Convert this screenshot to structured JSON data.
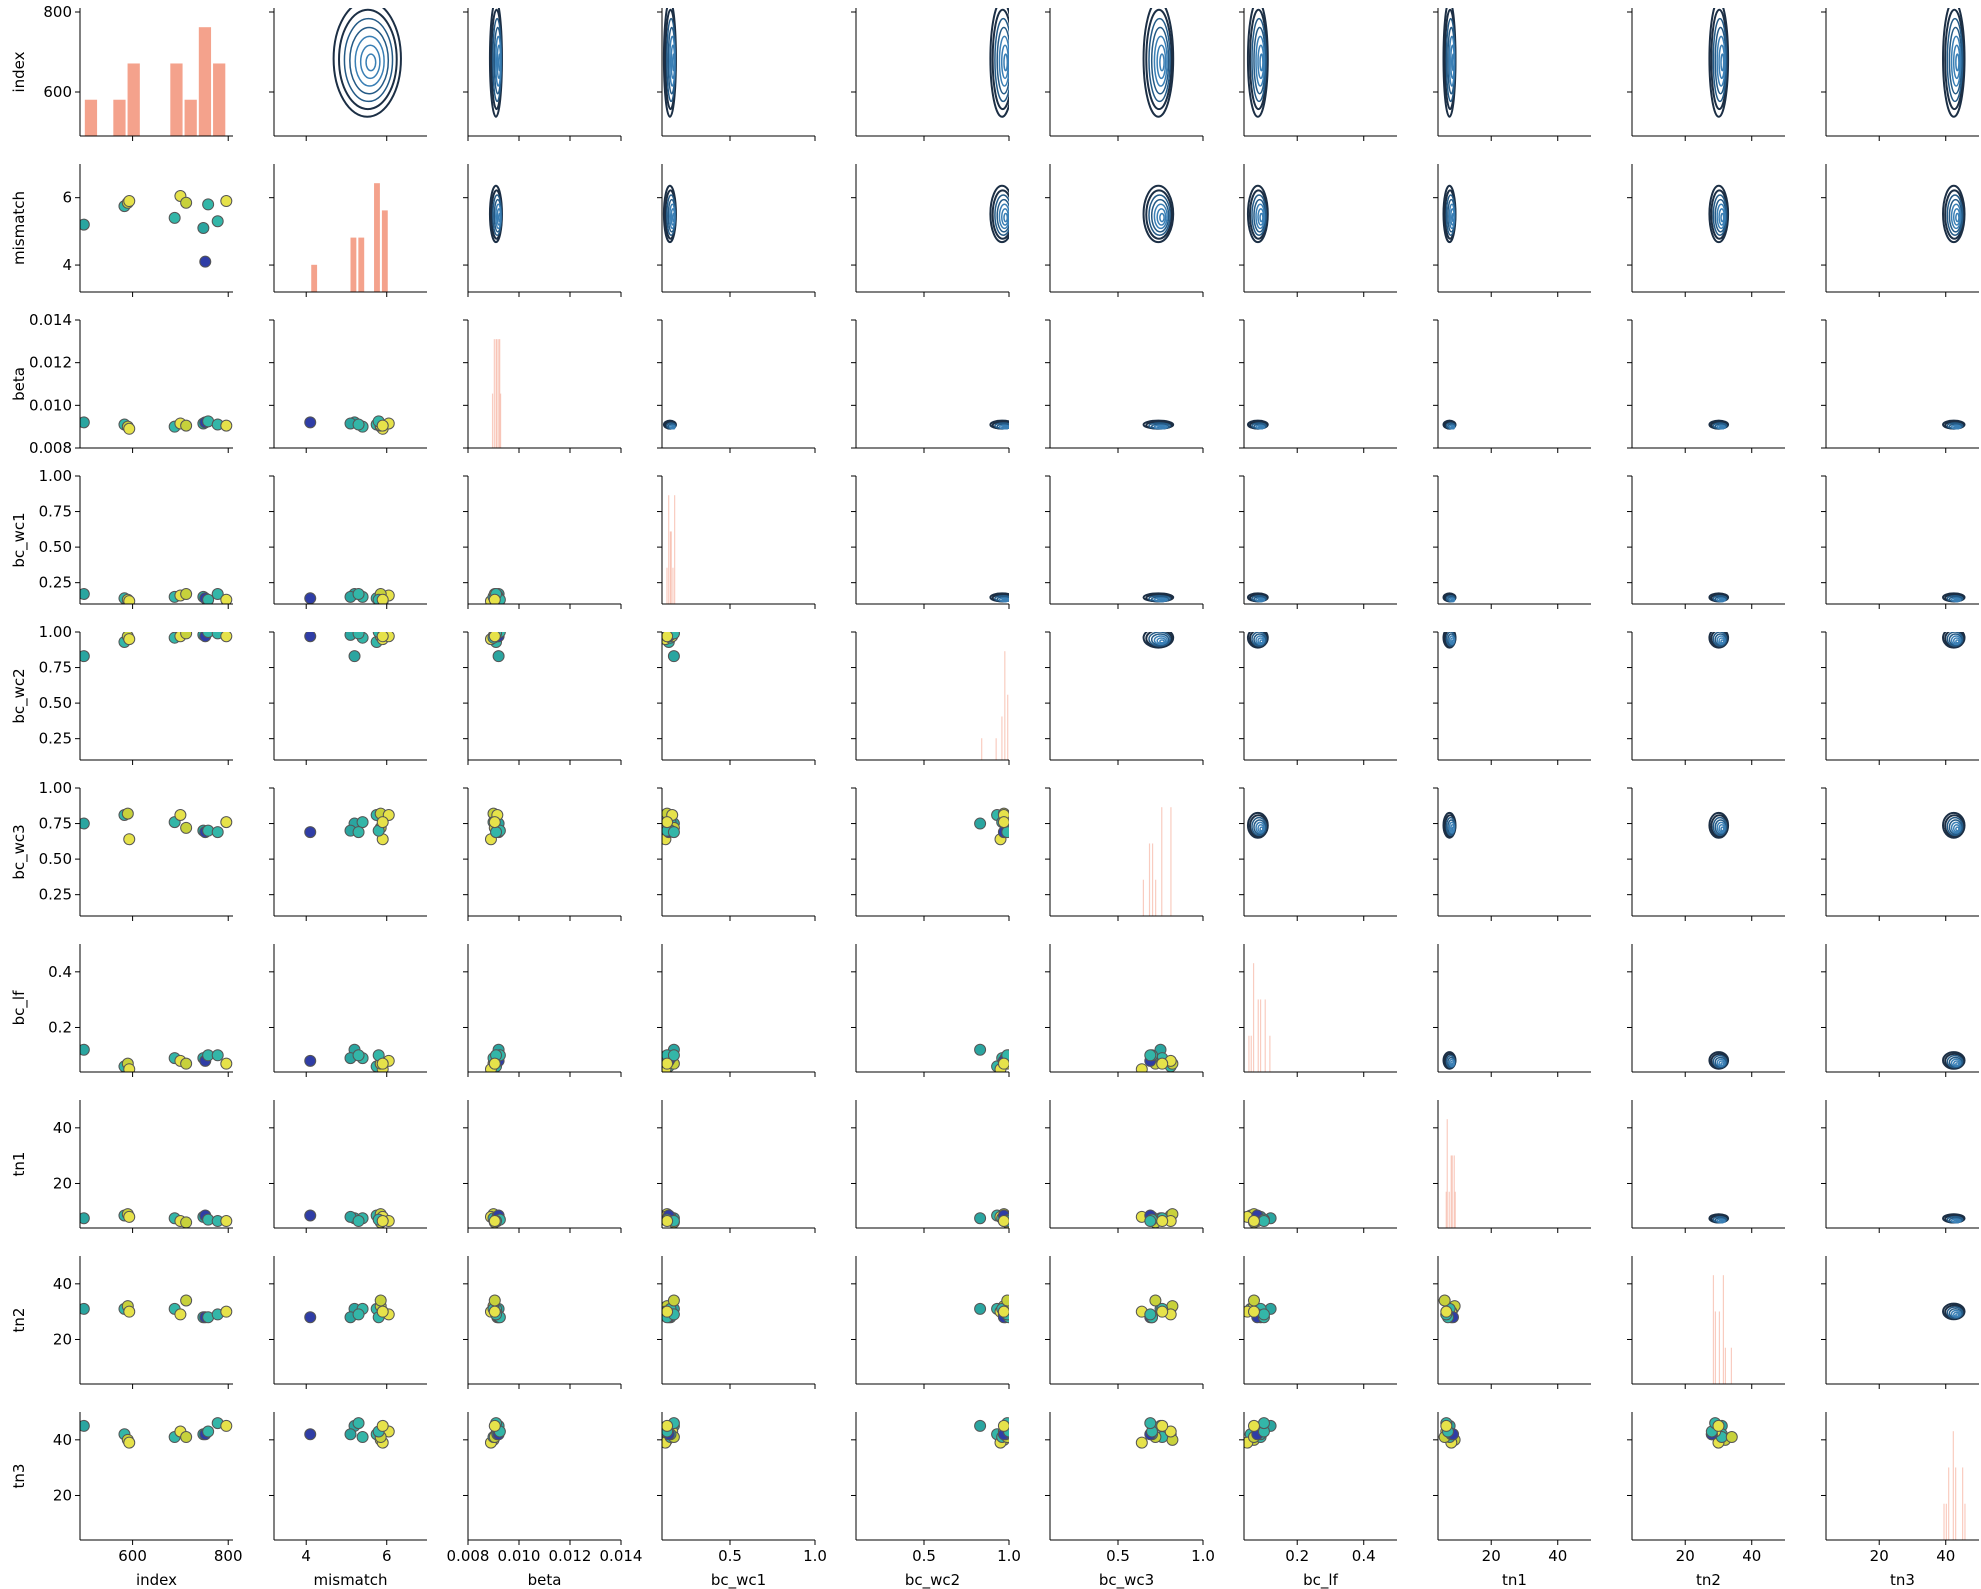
{
  "chart_data": {
    "type": "pairgrid",
    "variables": [
      "index",
      "mismatch",
      "beta",
      "bc_wc1",
      "bc_wc2",
      "bc_wc3",
      "bc_lf",
      "tn1",
      "tn2",
      "tn3"
    ],
    "lower": "scatter",
    "diagonal": "histogram",
    "upper": "kde-contour",
    "axes": [
      {
        "name": "index",
        "range": [
          490,
          810
        ],
        "ticks": [
          "400",
          "600",
          "800"
        ],
        "tick_values": [
          400,
          600,
          800
        ]
      },
      {
        "name": "mismatch",
        "range": [
          3.2,
          7.0
        ],
        "ticks": [
          "4",
          "6"
        ],
        "tick_values": [
          4,
          6
        ]
      },
      {
        "name": "beta",
        "range": [
          0.008,
          0.014
        ],
        "ticks": [
          "0.008",
          "0.010",
          "0.012",
          "0.014"
        ],
        "tick_values": [
          0.008,
          0.01,
          0.012,
          0.014
        ]
      },
      {
        "name": "bc_wc1",
        "range": [
          0.1,
          1.0
        ],
        "ticks": [
          "0.25",
          "0.50",
          "0.75",
          "1.00"
        ],
        "tick_values": [
          0.25,
          0.5,
          0.75,
          1.0
        ]
      },
      {
        "name": "bc_wc2",
        "range": [
          0.1,
          1.0
        ],
        "ticks": [
          "0.25",
          "0.50",
          "0.75",
          "1.00"
        ],
        "tick_values": [
          0.25,
          0.5,
          0.75,
          1.0
        ]
      },
      {
        "name": "bc_wc3",
        "range": [
          0.1,
          1.0
        ],
        "ticks": [
          "0.25",
          "0.50",
          "0.75",
          "1.00"
        ],
        "tick_values": [
          0.25,
          0.5,
          0.75,
          1.0
        ]
      },
      {
        "name": "bc_lf",
        "range": [
          0.04,
          0.5
        ],
        "ticks": [
          "0.2",
          "0.4"
        ],
        "tick_values": [
          0.2,
          0.4
        ]
      },
      {
        "name": "tn1",
        "range": [
          4,
          50
        ],
        "ticks": [
          "20",
          "40"
        ],
        "tick_values": [
          20,
          40
        ]
      },
      {
        "name": "tn2",
        "range": [
          4,
          50
        ],
        "ticks": [
          "20",
          "40"
        ],
        "tick_values": [
          20,
          40
        ]
      },
      {
        "name": "tn3",
        "range": [
          4,
          50
        ],
        "ticks": [
          "20",
          "40"
        ],
        "tick_values": [
          20,
          40
        ]
      }
    ],
    "x_tick_labels": [
      {
        "values": [
          600,
          800
        ],
        "labels": [
          "600",
          "800"
        ]
      },
      {
        "values": [
          4,
          6
        ],
        "labels": [
          "4",
          "6"
        ]
      },
      {
        "values": [
          0.008,
          0.01,
          0.012,
          0.014
        ],
        "labels": [
          "0.008",
          "0.010",
          "0.012",
          "0.014"
        ]
      },
      {
        "values": [
          0.5,
          1.0
        ],
        "labels": [
          "0.5",
          "1.0"
        ]
      },
      {
        "values": [
          0.5,
          1.0
        ],
        "labels": [
          "0.5",
          "1.0"
        ]
      },
      {
        "values": [
          0.5,
          1.0
        ],
        "labels": [
          "0.5",
          "1.0"
        ]
      },
      {
        "values": [
          0.2,
          0.4
        ],
        "labels": [
          "0.2",
          "0.4"
        ]
      },
      {
        "values": [
          20,
          40
        ],
        "labels": [
          "20",
          "40"
        ]
      },
      {
        "values": [
          20,
          40
        ],
        "labels": [
          "20",
          "40"
        ]
      },
      {
        "values": [
          20,
          40
        ],
        "labels": [
          "20",
          "40"
        ]
      }
    ],
    "colors": {
      "hist": "#f4a28c",
      "contour": "#1c2f45",
      "contour_inner": "#3a7fb5",
      "axis": "#000000",
      "point_palette": [
        "#2f3da6",
        "#2aa5a0",
        "#33b6a8",
        "#c7d13b",
        "#e6e24a"
      ],
      "point_edge": "#555555"
    },
    "points": [
      {
        "index": 498,
        "mismatch": 5.2,
        "beta": 0.0092,
        "bc_wc1": 0.17,
        "bc_wc2": 0.83,
        "bc_wc3": 0.75,
        "bc_lf": 0.12,
        "tn1": 7.5,
        "tn2": 31,
        "tn3": 45,
        "c": 1
      },
      {
        "index": 583,
        "mismatch": 5.75,
        "beta": 0.0091,
        "bc_wc1": 0.14,
        "bc_wc2": 0.93,
        "bc_wc3": 0.81,
        "bc_lf": 0.06,
        "tn1": 8.5,
        "tn2": 31,
        "tn3": 42,
        "c": 2
      },
      {
        "index": 590,
        "mismatch": 5.85,
        "beta": 0.009,
        "bc_wc1": 0.13,
        "bc_wc2": 0.97,
        "bc_wc3": 0.82,
        "bc_lf": 0.07,
        "tn1": 9.0,
        "tn2": 32,
        "tn3": 40,
        "c": 3
      },
      {
        "index": 593,
        "mismatch": 5.9,
        "beta": 0.0089,
        "bc_wc1": 0.12,
        "bc_wc2": 0.95,
        "bc_wc3": 0.64,
        "bc_lf": 0.05,
        "tn1": 8.0,
        "tn2": 30,
        "tn3": 39,
        "c": 4
      },
      {
        "index": 688,
        "mismatch": 5.4,
        "beta": 0.009,
        "bc_wc1": 0.15,
        "bc_wc2": 0.96,
        "bc_wc3": 0.76,
        "bc_lf": 0.09,
        "tn1": 7.5,
        "tn2": 31,
        "tn3": 41,
        "c": 2
      },
      {
        "index": 700,
        "mismatch": 6.05,
        "beta": 0.00915,
        "bc_wc1": 0.16,
        "bc_wc2": 0.97,
        "bc_wc3": 0.81,
        "bc_lf": 0.08,
        "tn1": 6.5,
        "tn2": 29,
        "tn3": 43,
        "c": 4
      },
      {
        "index": 712,
        "mismatch": 5.85,
        "beta": 0.00905,
        "bc_wc1": 0.17,
        "bc_wc2": 0.99,
        "bc_wc3": 0.72,
        "bc_lf": 0.07,
        "tn1": 6.0,
        "tn2": 34,
        "tn3": 41,
        "c": 3
      },
      {
        "index": 748,
        "mismatch": 5.1,
        "beta": 0.00915,
        "bc_wc1": 0.15,
        "bc_wc2": 0.98,
        "bc_wc3": 0.7,
        "bc_lf": 0.09,
        "tn1": 8.0,
        "tn2": 28,
        "tn3": 42,
        "c": 1
      },
      {
        "index": 752,
        "mismatch": 4.1,
        "beta": 0.0092,
        "bc_wc1": 0.14,
        "bc_wc2": 0.97,
        "bc_wc3": 0.69,
        "bc_lf": 0.08,
        "tn1": 8.5,
        "tn2": 28,
        "tn3": 42,
        "c": 0
      },
      {
        "index": 758,
        "mismatch": 5.8,
        "beta": 0.00925,
        "bc_wc1": 0.13,
        "bc_wc2": 1.0,
        "bc_wc3": 0.7,
        "bc_lf": 0.1,
        "tn1": 7.0,
        "tn2": 28,
        "tn3": 43,
        "c": 2
      },
      {
        "index": 778,
        "mismatch": 5.3,
        "beta": 0.0091,
        "bc_wc1": 0.17,
        "bc_wc2": 0.99,
        "bc_wc3": 0.69,
        "bc_lf": 0.1,
        "tn1": 6.5,
        "tn2": 29,
        "tn3": 46,
        "c": 2
      },
      {
        "index": 796,
        "mismatch": 5.9,
        "beta": 0.00905,
        "bc_wc1": 0.13,
        "bc_wc2": 0.97,
        "bc_wc3": 0.76,
        "bc_lf": 0.07,
        "tn1": 6.5,
        "tn2": 30,
        "tn3": 45,
        "c": 4
      }
    ]
  }
}
